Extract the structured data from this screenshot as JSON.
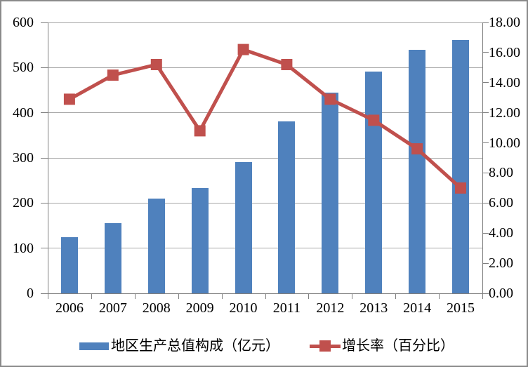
{
  "chart_data": {
    "type": "bar",
    "subtype": "combo-bar-line-dual-axis",
    "title": "",
    "categories": [
      "2006",
      "2007",
      "2008",
      "2009",
      "2010",
      "2011",
      "2012",
      "2013",
      "2014",
      "2015"
    ],
    "series": [
      {
        "name": "地区生产总值构成（亿元）",
        "type": "bar",
        "axis": "left",
        "color": "#4f81bd",
        "values": [
          125,
          155,
          210,
          233,
          291,
          381,
          444,
          491,
          540,
          561
        ]
      },
      {
        "name": "增长率（百分比）",
        "type": "line",
        "axis": "right",
        "color": "#c0504d",
        "marker": "square",
        "values": [
          12.9,
          14.5,
          15.2,
          10.8,
          16.2,
          15.2,
          12.9,
          11.5,
          9.6,
          7.0
        ]
      }
    ],
    "left_axis": {
      "min": 0,
      "max": 600,
      "step": 100,
      "tick_labels": [
        "0",
        "100",
        "200",
        "300",
        "400",
        "500",
        "600"
      ]
    },
    "right_axis": {
      "min": 0,
      "max": 18,
      "step": 2,
      "tick_labels": [
        "0.00",
        "2.00",
        "4.00",
        "6.00",
        "8.00",
        "10.00",
        "12.00",
        "14.00",
        "16.00",
        "18.00"
      ]
    },
    "grid": true,
    "legend_position": "bottom"
  },
  "colors": {
    "bar": "#4f81bd",
    "line": "#c0504d",
    "gridline": "#a6a6a6",
    "axis": "#7f7f7f",
    "text": "#000000",
    "border": "#8a8a8a",
    "background": "#ffffff"
  }
}
